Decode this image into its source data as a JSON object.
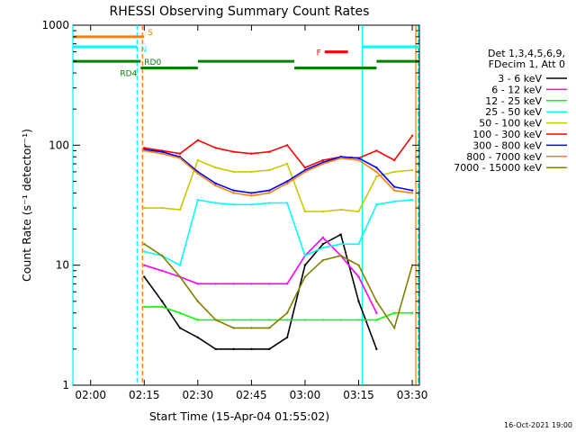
{
  "chart_data": {
    "type": "line",
    "title": "RHESSI Observing Summary Count Rates",
    "xlabel": "Start Time (15-Apr-04 01:55:02)",
    "ylabel": "Count Rate (s⁻¹ detector⁻¹)",
    "xlim": [
      "01:55:02",
      "03:32:00"
    ],
    "ylim": [
      1,
      1000
    ],
    "yscale": "log",
    "x_ticks": [
      "02:00",
      "02:15",
      "02:30",
      "02:45",
      "03:00",
      "03:15",
      "03:30"
    ],
    "y_ticks": [
      "1",
      "10",
      "100",
      "1000"
    ],
    "timestamp": "16-Oct-2021 19:00",
    "legend": {
      "placement": "right",
      "header": [
        "Det 1,3,4,5,6,9,",
        "FDecim 1, Att 0"
      ],
      "entries": [
        {
          "label": "3 - 6 keV",
          "color": "#000000"
        },
        {
          "label": "6 - 12 keV",
          "color": "#ff00ff"
        },
        {
          "label": "12 - 25 keV",
          "color": "#00ff00"
        },
        {
          "label": "25 - 50 keV",
          "color": "#00ffff"
        },
        {
          "label": "50 - 100 keV",
          "color": "#c8c800"
        },
        {
          "label": "100 - 300 keV",
          "color": "#ff0000"
        },
        {
          "label": "300 - 800 keV",
          "color": "#0000ff"
        },
        {
          "label": "800 - 7000 keV",
          "color": "#ff8000"
        },
        {
          "label": "7000 - 15000 keV",
          "color": "#808000"
        }
      ]
    },
    "flags": [
      {
        "label": "S",
        "color": "#ff8000",
        "segments": [
          [
            "01:55:02",
            "02:15:00"
          ]
        ],
        "y": 800
      },
      {
        "label": "N",
        "color": "#00ffff",
        "segments": [
          [
            "01:55:02",
            "02:13:00"
          ],
          [
            "03:16:00",
            "03:32:00"
          ]
        ],
        "y": 660
      },
      {
        "label": "F",
        "color": "#ff0000",
        "segments": [
          [
            "03:05:30",
            "03:12:00"
          ]
        ],
        "y": 600
      },
      {
        "label": "RD0",
        "color": "#008000",
        "segments": [
          [
            "01:55:02",
            "02:14:00"
          ],
          [
            "02:30:00",
            "02:57:00"
          ],
          [
            "03:20:00",
            "03:32:00"
          ]
        ],
        "y": 500
      },
      {
        "label": "RD4",
        "color": "#008000",
        "segments": [
          [
            "02:14:00",
            "02:30:00"
          ],
          [
            "02:57:00",
            "03:20:00"
          ]
        ],
        "y": 440
      }
    ],
    "vertical_markers": [
      {
        "time": "01:55:02",
        "color": "#00ffff",
        "style": "solid"
      },
      {
        "time": "02:13:00",
        "color": "#00ffff",
        "style": "dashed"
      },
      {
        "time": "02:14:30",
        "color": "#ff8000",
        "style": "dashed"
      },
      {
        "time": "03:16:00",
        "color": "#00ffff",
        "style": "solid"
      },
      {
        "time": "03:31:00",
        "color": "#ff8000",
        "style": "solid"
      },
      {
        "time": "03:31:40",
        "color": "#00ffff",
        "style": "dashed"
      }
    ],
    "series": [
      {
        "name": "3 - 6 keV",
        "color": "#000000",
        "x": [
          "02:15",
          "02:20",
          "02:25",
          "02:30",
          "02:35",
          "02:40",
          "02:45",
          "02:50",
          "02:55",
          "03:00",
          "03:05",
          "03:10",
          "03:15",
          "03:20"
        ],
        "y": [
          8,
          5,
          3,
          2.5,
          2,
          2,
          2,
          2,
          2.5,
          10,
          15,
          18,
          5,
          2
        ]
      },
      {
        "name": "6 - 12 keV",
        "color": "#ff00ff",
        "x": [
          "02:15",
          "02:20",
          "02:25",
          "02:30",
          "02:35",
          "02:40",
          "02:45",
          "02:50",
          "02:55",
          "03:00",
          "03:05",
          "03:10",
          "03:15",
          "03:20"
        ],
        "y": [
          10,
          9,
          8,
          7,
          7,
          7,
          7,
          7,
          7,
          12,
          17,
          12,
          8,
          4
        ]
      },
      {
        "name": "12 - 25 keV",
        "color": "#00ff00",
        "x": [
          "02:15",
          "02:20",
          "02:25",
          "02:30",
          "02:35",
          "02:40",
          "02:45",
          "02:50",
          "02:55",
          "03:00",
          "03:05",
          "03:10",
          "03:15",
          "03:20",
          "03:25",
          "03:30"
        ],
        "y": [
          4.5,
          4.5,
          4,
          3.5,
          3.5,
          3.5,
          3.5,
          3.5,
          3.5,
          3.5,
          3.5,
          3.5,
          3.5,
          3.5,
          4,
          4
        ]
      },
      {
        "name": "25 - 50 keV",
        "color": "#00ffff",
        "x": [
          "02:15",
          "02:20",
          "02:25",
          "02:30",
          "02:35",
          "02:40",
          "02:45",
          "02:50",
          "02:55",
          "03:00",
          "03:05",
          "03:10",
          "03:15",
          "03:20",
          "03:25",
          "03:30"
        ],
        "y": [
          13,
          12,
          10,
          35,
          33,
          32,
          32,
          33,
          33,
          12,
          14,
          15,
          15,
          32,
          34,
          35
        ]
      },
      {
        "name": "50 - 100 keV",
        "color": "#c8c800",
        "x": [
          "02:15",
          "02:20",
          "02:25",
          "02:30",
          "02:35",
          "02:40",
          "02:45",
          "02:50",
          "02:55",
          "03:00",
          "03:05",
          "03:10",
          "03:15",
          "03:20",
          "03:25",
          "03:30"
        ],
        "y": [
          30,
          30,
          29,
          75,
          65,
          60,
          60,
          62,
          70,
          28,
          28,
          29,
          28,
          55,
          60,
          62
        ]
      },
      {
        "name": "100 - 300 keV",
        "color": "#ff0000",
        "x": [
          "02:15",
          "02:20",
          "02:25",
          "02:30",
          "02:35",
          "02:40",
          "02:45",
          "02:50",
          "02:55",
          "03:00",
          "03:05",
          "03:10",
          "03:15",
          "03:20",
          "03:25",
          "03:30"
        ],
        "y": [
          95,
          90,
          85,
          110,
          95,
          88,
          85,
          88,
          100,
          65,
          75,
          80,
          78,
          90,
          75,
          120
        ]
      },
      {
        "name": "300 - 800 keV",
        "color": "#0000ff",
        "x": [
          "02:15",
          "02:20",
          "02:25",
          "02:30",
          "02:35",
          "02:40",
          "02:45",
          "02:50",
          "02:55",
          "03:00",
          "03:05",
          "03:10",
          "03:15",
          "03:20",
          "03:25",
          "03:30"
        ],
        "y": [
          92,
          88,
          80,
          60,
          48,
          42,
          40,
          42,
          50,
          62,
          72,
          80,
          78,
          65,
          45,
          42
        ]
      },
      {
        "name": "800 - 7000 keV",
        "color": "#ff8000",
        "x": [
          "02:15",
          "02:20",
          "02:25",
          "02:30",
          "02:35",
          "02:40",
          "02:45",
          "02:50",
          "02:55",
          "03:00",
          "03:05",
          "03:10",
          "03:15",
          "03:20",
          "03:25",
          "03:30"
        ],
        "y": [
          90,
          85,
          78,
          58,
          46,
          40,
          38,
          40,
          48,
          60,
          70,
          78,
          75,
          60,
          42,
          40
        ]
      },
      {
        "name": "7000 - 15000 keV",
        "color": "#808000",
        "x": [
          "02:15",
          "02:20",
          "02:25",
          "02:30",
          "02:35",
          "02:40",
          "02:45",
          "02:50",
          "02:55",
          "03:00",
          "03:05",
          "03:10",
          "03:15",
          "03:20",
          "03:25",
          "03:30"
        ],
        "y": [
          15,
          12,
          8,
          5,
          3.5,
          3,
          3,
          3,
          4,
          8,
          11,
          12,
          10,
          5,
          3,
          10
        ]
      }
    ]
  }
}
